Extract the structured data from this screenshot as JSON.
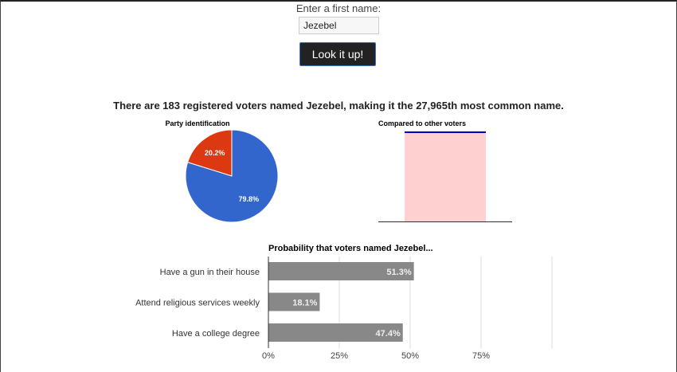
{
  "form": {
    "label": "Enter a first name:",
    "value": "Jezebel",
    "button": "Look it up!"
  },
  "headline": "There are 183 registered voters named Jezebel, making it the 27,965th most common name.",
  "chart_data": [
    {
      "type": "pie",
      "title": "Party identification",
      "slices": [
        {
          "value": 20.2,
          "label": "20.2%",
          "color": "#dc3912"
        },
        {
          "value": 79.8,
          "label": "79.8%",
          "color": "#3366cc"
        }
      ]
    },
    {
      "type": "bar",
      "title": "Compared to other voters",
      "fill_color": "#ffd0d0",
      "line_color": "#0000cc"
    },
    {
      "type": "bar",
      "orientation": "horizontal",
      "title": "Probability that voters named Jezebel...",
      "categories": [
        "Have a gun in their house",
        "Attend religious services weekly",
        "Have a college degree"
      ],
      "values": [
        51.3,
        18.1,
        47.4
      ],
      "labels": [
        "51.3%",
        "18.1%",
        "47.4%"
      ],
      "xlim": [
        0,
        100
      ],
      "ticks": [
        "0%",
        "25%",
        "50%",
        "75%"
      ],
      "grid": true,
      "color": "#888888"
    }
  ]
}
